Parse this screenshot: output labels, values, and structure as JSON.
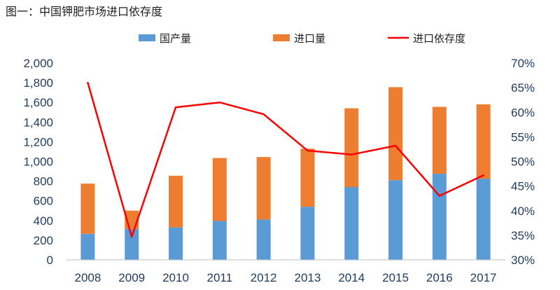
{
  "chart_data": {
    "type": "bar",
    "title": "图一：中国钾肥市场进口依存度",
    "categories": [
      "2008",
      "2009",
      "2010",
      "2011",
      "2012",
      "2013",
      "2014",
      "2015",
      "2016",
      "2017"
    ],
    "series": [
      {
        "name": "国产量",
        "kind": "bar",
        "axis": "left",
        "stack": "total",
        "color": "#5b9bd5",
        "values": [
          265,
          315,
          330,
          395,
          410,
          540,
          740,
          810,
          875,
          825
        ]
      },
      {
        "name": "进口量",
        "kind": "bar",
        "axis": "left",
        "stack": "total",
        "color": "#ed7d31",
        "values": [
          510,
          185,
          525,
          640,
          635,
          590,
          800,
          945,
          680,
          755
        ]
      },
      {
        "name": "进口依存度",
        "kind": "line",
        "axis": "right",
        "color": "#ff0000",
        "values": [
          0.66,
          0.347,
          0.61,
          0.62,
          0.596,
          0.522,
          0.514,
          0.532,
          0.43,
          0.472
        ]
      }
    ],
    "y_left": {
      "min": 0,
      "max": 2000,
      "ticks": [
        "0",
        "200",
        "400",
        "600",
        "800",
        "1,000",
        "1,200",
        "1,400",
        "1,600",
        "1,800",
        "2,000"
      ]
    },
    "y_right": {
      "min": 0.3,
      "max": 0.7,
      "ticks": [
        "30%",
        "35%",
        "40%",
        "45%",
        "50%",
        "55%",
        "60%",
        "65%",
        "70%"
      ]
    },
    "grid": false,
    "legend_position": "top"
  }
}
